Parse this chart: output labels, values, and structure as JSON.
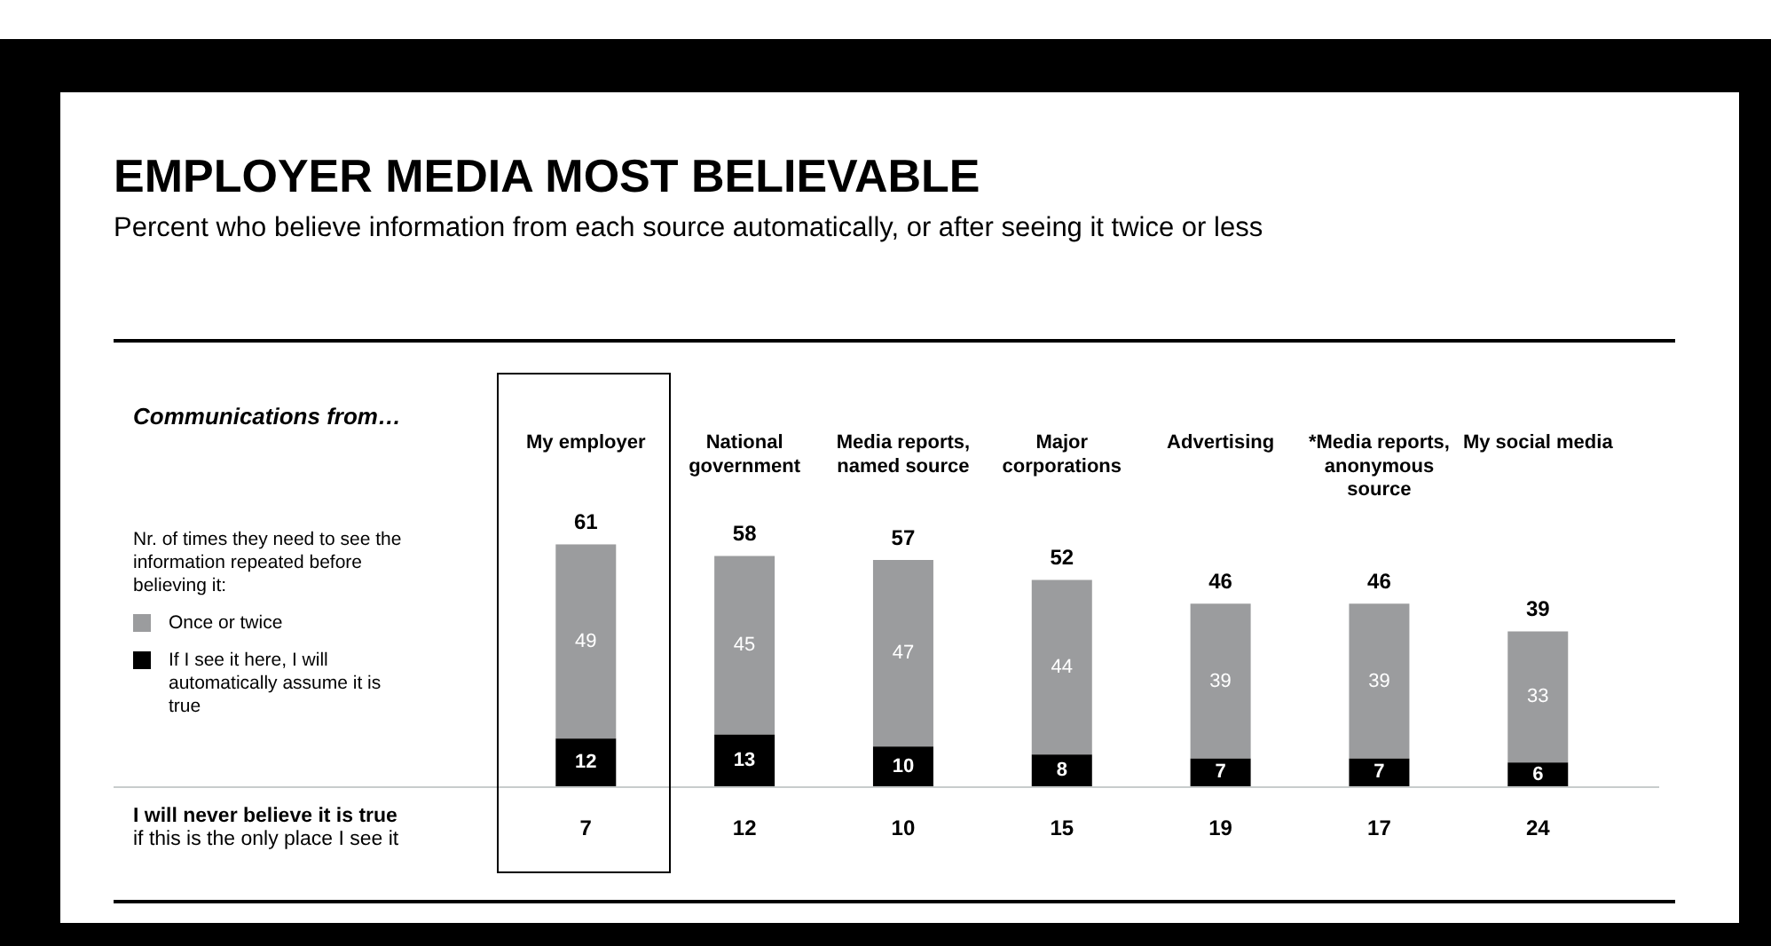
{
  "chart_data": {
    "type": "bar",
    "title": "EMPLOYER MEDIA MOST BELIEVABLE",
    "subtitle": "Percent who believe information from each source automatically, or after seeing it twice or less",
    "xlabel": "Communications from…",
    "legend_title": "Nr. of times they need to see the information repeated before believing it:",
    "categories": [
      "My employer",
      "National government",
      "Media reports, named source",
      "Major corporations",
      "Advertising",
      "*Media reports, anonymous source",
      "My social media"
    ],
    "stacked": true,
    "data_labels": true,
    "legend": "left",
    "grid": false,
    "tick_labels": "x",
    "series": [
      {
        "name": "If I see it here, I will automatically assume it is true",
        "color": "#000000",
        "values": [
          12,
          13,
          10,
          8,
          7,
          7,
          6
        ]
      },
      {
        "name": "Once or twice",
        "color": "#9b9c9e",
        "values": [
          49,
          45,
          47,
          44,
          39,
          39,
          33
        ]
      }
    ],
    "totals": [
      "61",
      "58",
      "57",
      "52",
      "46",
      "46",
      "39"
    ],
    "annotations": [
      "I will never believe it is true",
      "if this is the only place I see it",
      "7",
      "12",
      "10",
      "15",
      "19",
      "17",
      "24"
    ]
  }
}
